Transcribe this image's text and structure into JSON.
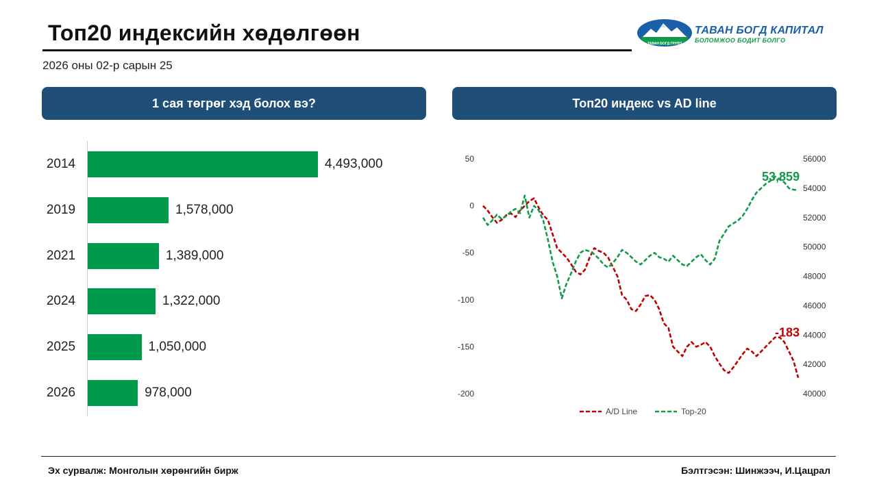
{
  "header": {
    "title": "Топ20 индексийн хөдөлгөөн",
    "date": "2026 оны 02-р сарын 25",
    "logo_name": "ТАВАН БОГД КАПИТАЛ",
    "logo_tagline": "БОЛОМЖОО БОДИТ БОЛГО",
    "logo_small": "ТАВАН БОГД ГРУПП"
  },
  "panels": {
    "left_title": "1 сая төгрөг хэд болох вэ?",
    "right_title": "Топ20 индекс vs AD line"
  },
  "footer": {
    "source": "Эх сурвалж: Монголын хөрөнгийн бирж",
    "author": "Бэлтгэсэн: Шинжээч, И.Цацрал"
  },
  "colors": {
    "header_bg": "#1f4e79",
    "bar": "#009a4d",
    "ad_line": "#c00000",
    "top20": "#0f9b48"
  },
  "chart_data": [
    {
      "type": "bar",
      "orientation": "horizontal",
      "title": "1 сая төгрөг хэд болох вэ?",
      "categories": [
        "2014",
        "2019",
        "2021",
        "2024",
        "2025",
        "2026"
      ],
      "values": [
        4493000,
        1578000,
        1389000,
        1322000,
        1050000,
        978000
      ],
      "labels": [
        "4,493,000",
        "1,578,000",
        "1,389,000",
        "1,322,000",
        "1,050,000",
        "978,000"
      ]
    },
    {
      "type": "line",
      "title": "Топ20 индекс vs AD line",
      "left_axis": {
        "ylim": [
          -200,
          50
        ],
        "ticks": [
          "50",
          "0",
          "-50",
          "-100",
          "-150",
          "-200"
        ]
      },
      "right_axis": {
        "ylim": [
          40000,
          56000
        ],
        "ticks": [
          "56000",
          "54000",
          "52000",
          "50000",
          "48000",
          "46000",
          "44000",
          "42000",
          "40000"
        ]
      },
      "legend": {
        "position": "bottom"
      },
      "series": [
        {
          "name": "A/D Line",
          "axis": "left",
          "last_label": "-183",
          "values": [
            0,
            -5,
            -12,
            -18,
            -15,
            -10,
            -8,
            -12,
            -5,
            0,
            5,
            8,
            -2,
            -10,
            -15,
            -30,
            -45,
            -50,
            -55,
            -62,
            -70,
            -73,
            -68,
            -55,
            -45,
            -48,
            -50,
            -55,
            -65,
            -75,
            -95,
            -100,
            -110,
            -112,
            -105,
            -96,
            -95,
            -100,
            -110,
            -125,
            -130,
            -150,
            -155,
            -160,
            -150,
            -145,
            -150,
            -148,
            -145,
            -150,
            -160,
            -168,
            -175,
            -178,
            -172,
            -165,
            -158,
            -152,
            -155,
            -160,
            -155,
            -150,
            -145,
            -140,
            -140,
            -145,
            -155,
            -165,
            -183
          ]
        },
        {
          "name": "Top-20",
          "axis": "right",
          "last_label": "53,859",
          "values": [
            52000,
            51500,
            51800,
            52200,
            51900,
            52100,
            52400,
            52600,
            52300,
            53500,
            52000,
            52800,
            52500,
            51800,
            50500,
            49000,
            48000,
            46500,
            47500,
            48200,
            49000,
            49600,
            49800,
            49700,
            49500,
            49200,
            48800,
            48600,
            48900,
            49300,
            49800,
            49600,
            49300,
            49000,
            48800,
            49100,
            49400,
            49600,
            49300,
            49200,
            49000,
            49400,
            49100,
            48800,
            48700,
            49000,
            49300,
            49500,
            49100,
            48800,
            49200,
            50400,
            50900,
            51400,
            51600,
            51800,
            52100,
            52600,
            53200,
            53700,
            54000,
            54300,
            54500,
            54800,
            54600,
            54400,
            54000,
            53900,
            53859
          ]
        }
      ]
    }
  ]
}
